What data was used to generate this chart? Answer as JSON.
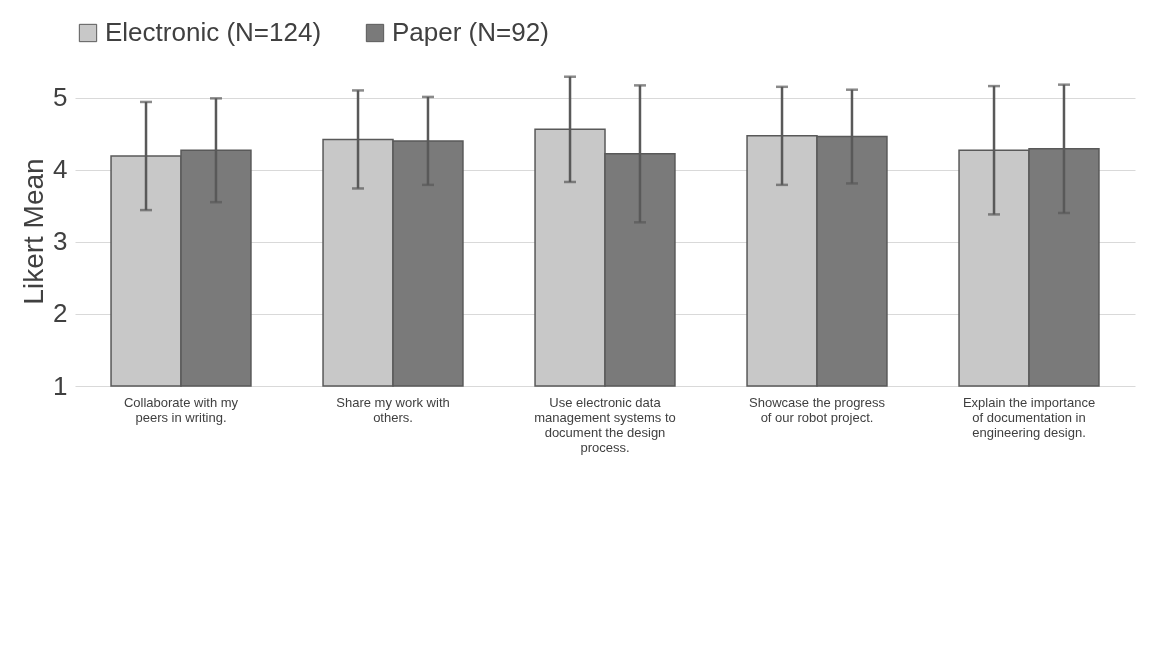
{
  "chart_data": {
    "type": "bar",
    "ylabel": "Likert Mean",
    "categories": [
      "Collaborate with my peers in writing.",
      "Share my work with others.",
      "Use electronic data management systems to document the design process.",
      "Showcase the progress of our robot project.",
      "Explain the importance of documentation in engineering design."
    ],
    "series": [
      {
        "name": "Electronic (N=124)",
        "color": "#c8c8c8",
        "values": [
          4.19,
          4.42,
          4.56,
          4.47,
          4.27
        ],
        "errors": [
          0.75,
          0.68,
          0.73,
          0.68,
          0.89
        ]
      },
      {
        "name": "Paper (N=92)",
        "color": "#7a7a7a",
        "values": [
          4.27,
          4.4,
          4.22,
          4.46,
          4.29
        ],
        "errors": [
          0.72,
          0.61,
          0.95,
          0.65,
          0.89
        ]
      }
    ],
    "ylim": [
      1,
      5.3
    ],
    "yticks": [
      1,
      2,
      3,
      4,
      5
    ],
    "grid": "y",
    "legend": "top"
  }
}
